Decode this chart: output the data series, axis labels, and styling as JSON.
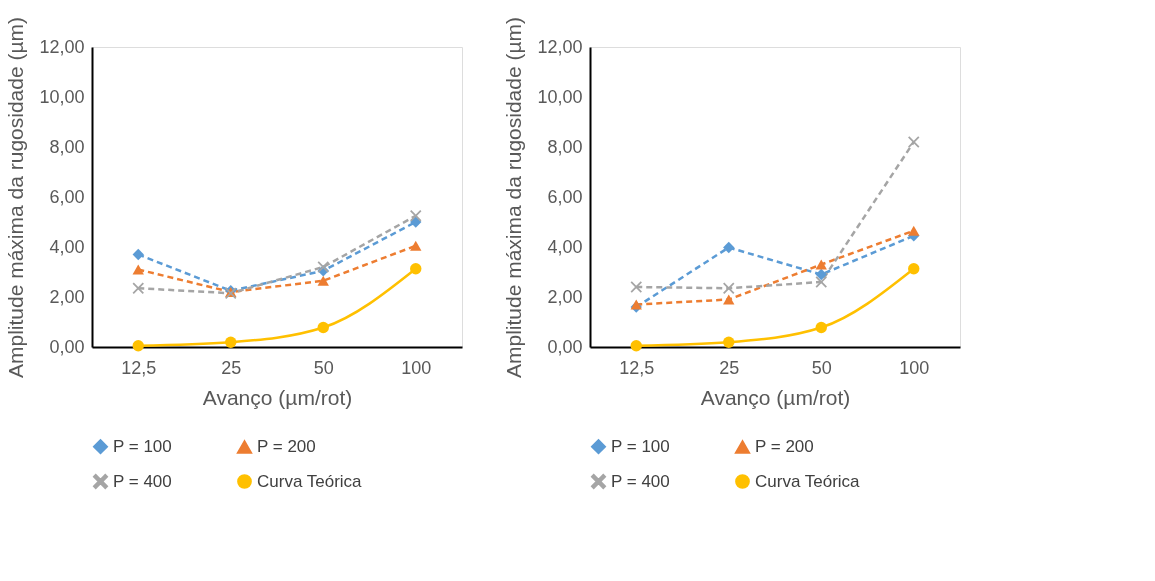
{
  "chart_data": [
    {
      "type": "line",
      "xlabel": "Avanço (µm/rot)",
      "ylabel": "Amplitude máxima da rugosidade (µm)",
      "categories": [
        "12,5",
        "25",
        "50",
        "100"
      ],
      "ylim": [
        0,
        12
      ],
      "yticks": [
        {
          "value": 0,
          "label": "0,00"
        },
        {
          "value": 2,
          "label": "2,00"
        },
        {
          "value": 4,
          "label": "4,00"
        },
        {
          "value": 6,
          "label": "6,00"
        },
        {
          "value": 8,
          "label": "8,00"
        },
        {
          "value": 10,
          "label": "10,00"
        },
        {
          "value": 12,
          "label": "12,00"
        }
      ],
      "grid": false,
      "legend": "bottom",
      "series": [
        {
          "name": "P = 100",
          "color": "#5b9bd5",
          "marker": "diamond",
          "line_style": "dashed",
          "values": [
            3.7,
            2.25,
            3.05,
            5.0
          ]
        },
        {
          "name": "P = 200",
          "color": "#ed7d31",
          "marker": "triangle",
          "line_style": "dashed",
          "values": [
            3.1,
            2.2,
            2.65,
            4.05
          ]
        },
        {
          "name": "P = 400",
          "color": "#a5a5a5",
          "marker": "cross",
          "line_style": "dashed",
          "values": [
            2.35,
            2.15,
            3.2,
            5.25
          ]
        },
        {
          "name": "Curva Teórica",
          "color": "#ffc000",
          "marker": "circle",
          "line_style": "solid",
          "values": [
            0.05,
            0.19,
            0.78,
            3.13
          ]
        }
      ]
    },
    {
      "type": "line",
      "xlabel": "Avanço (µm/rot)",
      "ylabel": "Amplitude máxima da rugosidade (µm)",
      "categories": [
        "12,5",
        "25",
        "50",
        "100"
      ],
      "ylim": [
        0,
        12
      ],
      "yticks": [
        {
          "value": 0,
          "label": "0,00"
        },
        {
          "value": 2,
          "label": "2,00"
        },
        {
          "value": 4,
          "label": "4,00"
        },
        {
          "value": 6,
          "label": "6,00"
        },
        {
          "value": 8,
          "label": "8,00"
        },
        {
          "value": 10,
          "label": "10,00"
        },
        {
          "value": 12,
          "label": "12,00"
        }
      ],
      "grid": false,
      "legend": "bottom",
      "series": [
        {
          "name": "P = 100",
          "color": "#5b9bd5",
          "marker": "diamond",
          "line_style": "dashed",
          "values": [
            1.6,
            3.98,
            2.9,
            4.45
          ]
        },
        {
          "name": "P = 200",
          "color": "#ed7d31",
          "marker": "triangle",
          "line_style": "dashed",
          "values": [
            1.7,
            1.9,
            3.3,
            4.65
          ]
        },
        {
          "name": "P = 400",
          "color": "#a5a5a5",
          "marker": "cross",
          "line_style": "dashed",
          "values": [
            2.4,
            2.35,
            2.6,
            8.2
          ]
        },
        {
          "name": "Curva Teórica",
          "color": "#ffc000",
          "marker": "circle",
          "line_style": "solid",
          "values": [
            0.05,
            0.19,
            0.78,
            3.13
          ]
        }
      ]
    }
  ]
}
